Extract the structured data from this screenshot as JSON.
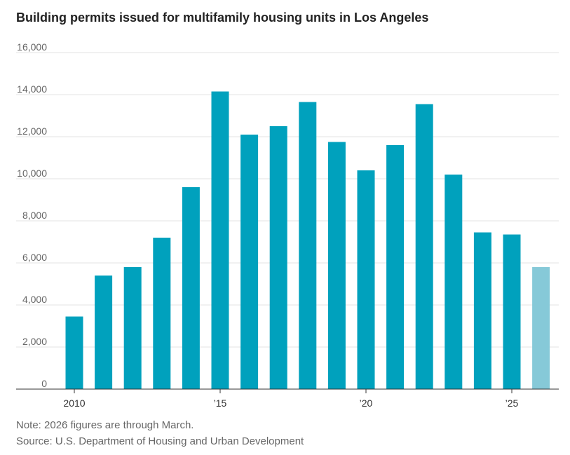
{
  "title": "Building permits issued for multifamily housing units in Los Angeles",
  "note": "Note: 2026 figures are through March.",
  "source": "Source: U.S. Department of Housing and Urban Development",
  "colors": {
    "bar": "#00a1bd",
    "bar_partial": "#86c9d8",
    "grid": "#e3e3e3",
    "axis": "#333333"
  },
  "chart_data": {
    "type": "bar",
    "title": "Building permits issued for multifamily housing units in Los Angeles",
    "xlabel": "",
    "ylabel": "",
    "categories": [
      "2010",
      "2011",
      "2012",
      "2013",
      "2014",
      "2015",
      "2016",
      "2017",
      "2018",
      "2019",
      "2020",
      "2021",
      "2022",
      "2023",
      "2024",
      "2025",
      "2026"
    ],
    "values": [
      3450,
      5400,
      5800,
      7200,
      9600,
      14150,
      12100,
      12500,
      13650,
      11750,
      10400,
      11600,
      13550,
      10200,
      7450,
      7350,
      5800
    ],
    "partial": [
      false,
      false,
      false,
      false,
      false,
      false,
      false,
      false,
      false,
      false,
      false,
      false,
      false,
      false,
      false,
      false,
      true
    ],
    "ylim": [
      0,
      16000
    ],
    "yticks": [
      0,
      2000,
      4000,
      6000,
      8000,
      10000,
      12000,
      14000,
      16000
    ],
    "ytick_labels": [
      "0",
      "2,000",
      "4,000",
      "6,000",
      "8,000",
      "10,000",
      "12,000",
      "14,000",
      "16,000"
    ],
    "xtick_labels": [
      {
        "category": "2010",
        "label": "2010"
      },
      {
        "category": "2015",
        "label": "’15"
      },
      {
        "category": "2020",
        "label": "’20"
      },
      {
        "category": "2025",
        "label": "’25"
      }
    ],
    "grid": true
  }
}
